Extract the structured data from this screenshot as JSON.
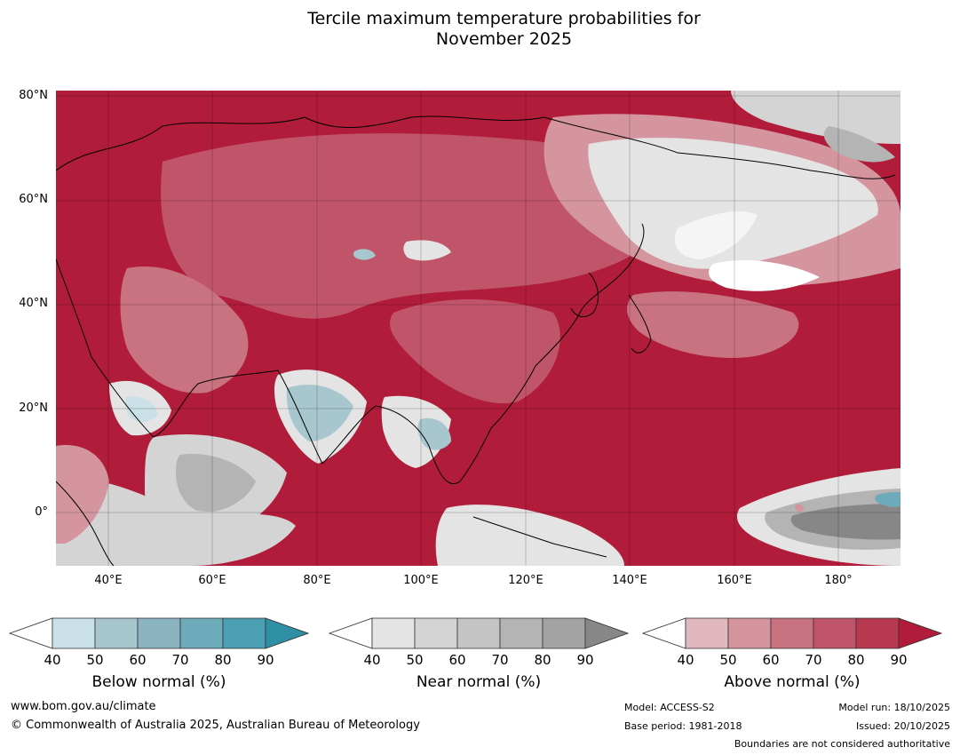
{
  "title": {
    "line1": "Tercile maximum temperature probabilities for",
    "line2": "November 2025"
  },
  "map": {
    "lat_labels": [
      "80°N",
      "60°N",
      "40°N",
      "20°N",
      "0°"
    ],
    "lon_labels": [
      "40°E",
      "60°E",
      "80°E",
      "100°E",
      "120°E",
      "140°E",
      "160°E",
      "180°"
    ],
    "lat_range": [
      -10,
      80
    ],
    "lon_range": [
      30,
      192
    ],
    "grid": true
  },
  "colorbars": [
    {
      "label": "Below normal (%)",
      "ticks": [
        "40",
        "50",
        "60",
        "70",
        "80",
        "90"
      ],
      "colors": [
        "#ffffff",
        "#c8e0e6",
        "#a7c6cd",
        "#8bb3c0",
        "#6eabba",
        "#4aa0b2",
        "#2f8fa5"
      ]
    },
    {
      "label": "Near normal (%)",
      "ticks": [
        "40",
        "50",
        "60",
        "70",
        "80",
        "90"
      ],
      "colors": [
        "#ffffff",
        "#e4e4e4",
        "#d4d4d4",
        "#c4c4c4",
        "#b4b4b4",
        "#a3a3a3",
        "#878787"
      ]
    },
    {
      "label": "Above normal (%)",
      "ticks": [
        "40",
        "50",
        "60",
        "70",
        "80",
        "90"
      ],
      "colors": [
        "#ffffff",
        "#e2b8bf",
        "#d4959f",
        "#c97280",
        "#c05569",
        "#b7384f",
        "#b01c39"
      ]
    }
  ],
  "footer": {
    "website": "www.bom.gov.au/climate",
    "copyright": "© Commonwealth of Australia 2025, Australian Bureau of Meteorology",
    "model": "Model: ACCESS-S2",
    "base_period": "Base period: 1981-2018",
    "model_run": "Model run: 18/10/2025",
    "issued": "Issued: 20/10/2025",
    "disclaimer": "Boundaries are not considered authoritative"
  }
}
